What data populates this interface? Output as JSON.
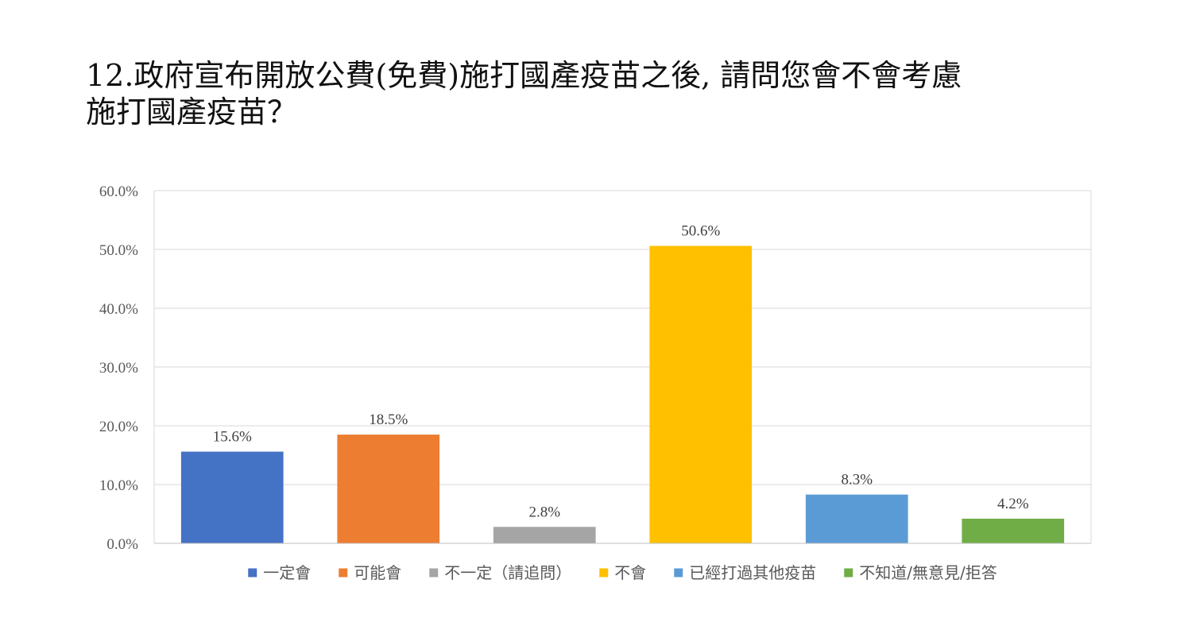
{
  "title": {
    "line1": "12.政府宣布開放公費(免費)施打國產疫苗之後, 請問您會不會考慮",
    "line2": "施打國產疫苗？"
  },
  "chart_data": {
    "type": "bar",
    "title": "12.政府宣布開放公費(免費)施打國產疫苗之後, 請問您會不會考慮施打國產疫苗？",
    "xlabel": "",
    "ylabel": "",
    "ylim": [
      0,
      60
    ],
    "yticks": [
      0,
      10,
      20,
      30,
      40,
      50,
      60
    ],
    "ytick_labels": [
      "0.0%",
      "10.0%",
      "20.0%",
      "30.0%",
      "40.0%",
      "50.0%",
      "60.0%"
    ],
    "grid": true,
    "legend_position": "bottom",
    "categories": [
      "一定會",
      "可能會",
      "不一定（請追問）",
      "不會",
      "已經打過其他疫苗",
      "不知道/無意見/拒答"
    ],
    "values": [
      15.6,
      18.5,
      2.8,
      50.6,
      8.3,
      4.2
    ],
    "data_labels": [
      "15.6%",
      "18.5%",
      "2.8%",
      "50.6%",
      "8.3%",
      "4.2%"
    ],
    "colors": [
      "#4472C4",
      "#ED7D31",
      "#A5A5A5",
      "#FFC000",
      "#5B9BD5",
      "#70AD47"
    ],
    "gridline_color": "#D9D9D9",
    "axis_color": "#BFBFBF"
  }
}
